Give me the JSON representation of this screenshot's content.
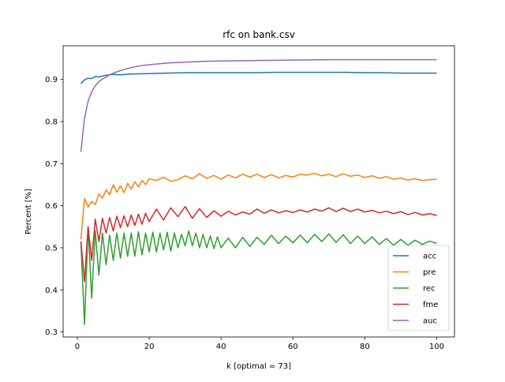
{
  "chart_data": {
    "type": "line",
    "title": "rfc on bank.csv",
    "xlabel": "k [optimal = 73]",
    "ylabel": "Percent [%]",
    "xlim": [
      -3.95,
      104.95
    ],
    "ylim": [
      0.288,
      0.98
    ],
    "xticks": [
      0,
      20,
      40,
      60,
      80,
      100
    ],
    "yticks": [
      0.3,
      0.4,
      0.5,
      0.6,
      0.7,
      0.8,
      0.9
    ],
    "ytick_labels": [
      "0.3",
      "0.4",
      "0.5",
      "0.6",
      "0.7",
      "0.8",
      "0.9"
    ],
    "grid": false,
    "legend": "lower-right",
    "series": [
      {
        "name": "acc",
        "color": "#1f77b4",
        "x": [
          1,
          2,
          3,
          4,
          5,
          6,
          8,
          10,
          12,
          15,
          20,
          25,
          30,
          35,
          40,
          45,
          50,
          55,
          60,
          65,
          70,
          75,
          80,
          85,
          90,
          95,
          100
        ],
        "values": [
          0.89,
          0.899,
          0.903,
          0.902,
          0.907,
          0.906,
          0.91,
          0.912,
          0.911,
          0.913,
          0.914,
          0.915,
          0.916,
          0.916,
          0.916,
          0.916,
          0.916,
          0.917,
          0.917,
          0.917,
          0.917,
          0.917,
          0.916,
          0.916,
          0.915,
          0.915,
          0.915
        ]
      },
      {
        "name": "pre",
        "color": "#ff7f0e",
        "x": [
          1,
          2,
          3,
          4,
          5,
          6,
          7,
          8,
          9,
          10,
          11,
          12,
          13,
          14,
          15,
          16,
          17,
          18,
          19,
          20,
          22,
          24,
          26,
          28,
          30,
          32,
          34,
          36,
          38,
          40,
          42,
          44,
          46,
          48,
          50,
          52,
          54,
          56,
          58,
          60,
          62,
          64,
          66,
          68,
          70,
          72,
          74,
          76,
          78,
          80,
          82,
          84,
          86,
          88,
          90,
          92,
          94,
          96,
          98,
          100
        ],
        "values": [
          0.52,
          0.617,
          0.597,
          0.61,
          0.603,
          0.628,
          0.618,
          0.638,
          0.626,
          0.65,
          0.632,
          0.647,
          0.631,
          0.653,
          0.64,
          0.657,
          0.645,
          0.66,
          0.65,
          0.664,
          0.66,
          0.668,
          0.658,
          0.662,
          0.671,
          0.664,
          0.676,
          0.665,
          0.672,
          0.663,
          0.673,
          0.666,
          0.675,
          0.668,
          0.675,
          0.667,
          0.674,
          0.666,
          0.672,
          0.668,
          0.675,
          0.673,
          0.677,
          0.671,
          0.675,
          0.669,
          0.676,
          0.67,
          0.673,
          0.667,
          0.671,
          0.665,
          0.669,
          0.663,
          0.666,
          0.661,
          0.664,
          0.66,
          0.662,
          0.663
        ]
      },
      {
        "name": "rec",
        "color": "#2ca02c",
        "x": [
          1,
          2,
          3,
          4,
          5,
          6,
          7,
          8,
          9,
          10,
          11,
          12,
          13,
          14,
          15,
          16,
          17,
          18,
          19,
          20,
          21,
          22,
          23,
          24,
          25,
          26,
          27,
          28,
          29,
          30,
          31,
          32,
          33,
          34,
          35,
          36,
          37,
          38,
          39,
          40,
          42,
          44,
          46,
          48,
          50,
          52,
          54,
          56,
          58,
          60,
          62,
          64,
          66,
          68,
          70,
          72,
          74,
          76,
          78,
          80,
          82,
          84,
          86,
          88,
          90,
          92,
          94,
          96,
          98,
          100
        ],
        "values": [
          0.515,
          0.318,
          0.55,
          0.38,
          0.54,
          0.435,
          0.535,
          0.46,
          0.53,
          0.47,
          0.535,
          0.475,
          0.535,
          0.48,
          0.535,
          0.48,
          0.538,
          0.483,
          0.535,
          0.49,
          0.537,
          0.49,
          0.535,
          0.495,
          0.537,
          0.492,
          0.535,
          0.5,
          0.532,
          0.505,
          0.54,
          0.505,
          0.535,
          0.5,
          0.532,
          0.5,
          0.528,
          0.498,
          0.526,
          0.5,
          0.523,
          0.5,
          0.525,
          0.503,
          0.525,
          0.508,
          0.53,
          0.51,
          0.528,
          0.512,
          0.53,
          0.512,
          0.532,
          0.515,
          0.533,
          0.513,
          0.531,
          0.51,
          0.528,
          0.51,
          0.526,
          0.508,
          0.522,
          0.506,
          0.52,
          0.506,
          0.518,
          0.508,
          0.516,
          0.51
        ]
      },
      {
        "name": "fme",
        "color": "#d62728",
        "x": [
          1,
          2,
          3,
          4,
          5,
          6,
          7,
          8,
          9,
          10,
          11,
          12,
          13,
          14,
          15,
          16,
          17,
          18,
          19,
          20,
          22,
          24,
          26,
          28,
          30,
          32,
          34,
          36,
          38,
          40,
          42,
          44,
          46,
          48,
          50,
          52,
          54,
          56,
          58,
          60,
          62,
          64,
          66,
          68,
          70,
          72,
          74,
          76,
          78,
          80,
          82,
          84,
          86,
          88,
          90,
          92,
          94,
          96,
          98,
          100
        ],
        "values": [
          0.515,
          0.42,
          0.55,
          0.47,
          0.568,
          0.515,
          0.57,
          0.535,
          0.572,
          0.54,
          0.575,
          0.548,
          0.576,
          0.55,
          0.578,
          0.553,
          0.58,
          0.556,
          0.582,
          0.562,
          0.592,
          0.566,
          0.595,
          0.574,
          0.598,
          0.57,
          0.593,
          0.572,
          0.588,
          0.575,
          0.587,
          0.578,
          0.585,
          0.58,
          0.592,
          0.582,
          0.59,
          0.583,
          0.588,
          0.584,
          0.59,
          0.585,
          0.592,
          0.587,
          0.595,
          0.586,
          0.594,
          0.586,
          0.592,
          0.585,
          0.589,
          0.583,
          0.587,
          0.581,
          0.586,
          0.579,
          0.584,
          0.578,
          0.581,
          0.577
        ]
      },
      {
        "name": "auc",
        "color": "#9467bd",
        "x": [
          1,
          2,
          3,
          4,
          5,
          6,
          7,
          8,
          9,
          10,
          12,
          14,
          16,
          18,
          20,
          25,
          30,
          35,
          40,
          50,
          60,
          70,
          80,
          90,
          100
        ],
        "values": [
          0.728,
          0.808,
          0.848,
          0.871,
          0.885,
          0.895,
          0.901,
          0.906,
          0.911,
          0.915,
          0.921,
          0.926,
          0.93,
          0.933,
          0.935,
          0.939,
          0.941,
          0.943,
          0.944,
          0.945,
          0.946,
          0.947,
          0.947,
          0.947,
          0.947
        ]
      }
    ]
  }
}
